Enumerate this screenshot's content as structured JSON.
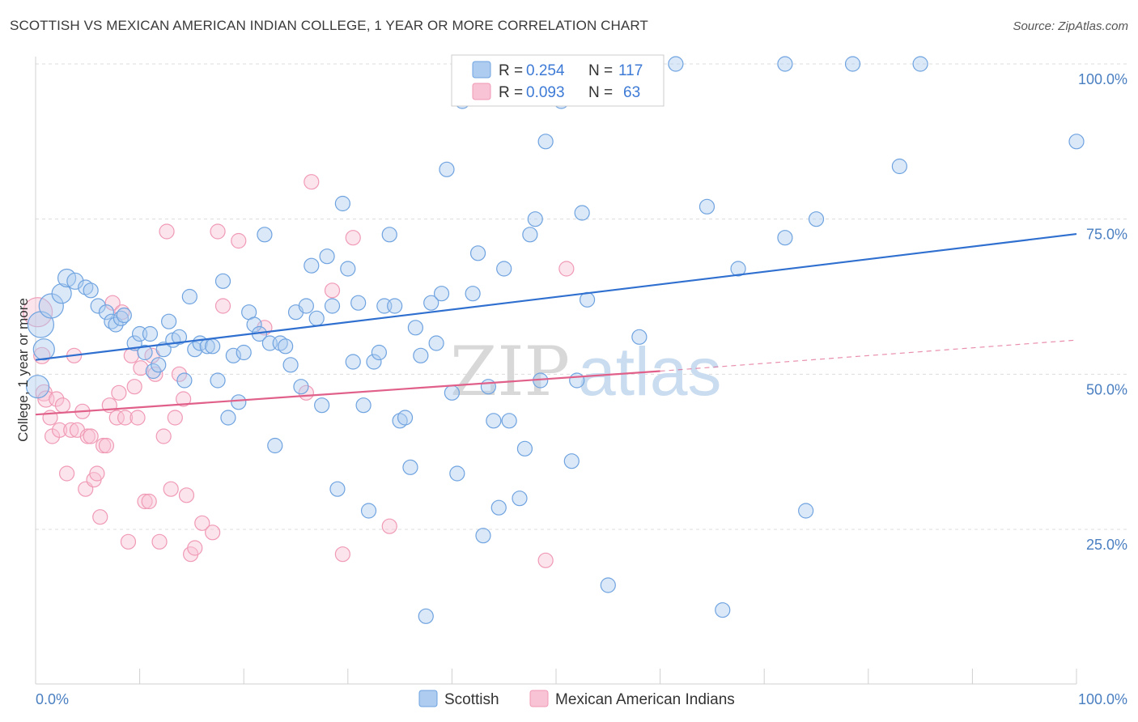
{
  "title": "SCOTTISH VS MEXICAN AMERICAN INDIAN COLLEGE, 1 YEAR OR MORE CORRELATION CHART",
  "source": "Source: ZipAtlas.com",
  "watermark": {
    "part1": "ZIP",
    "part2": "atlas"
  },
  "legend": {
    "items": [
      {
        "r_label": "R =",
        "r_value": "0.254",
        "n_label": "N =",
        "n_value": "117"
      },
      {
        "r_label": "R =",
        "r_value": "0.093",
        "n_label": "N =",
        "n_value": "63"
      }
    ]
  },
  "bottom_legend": [
    "Scottish",
    "Mexican American Indians"
  ],
  "colors": {
    "scottish": "#6fa3e0",
    "scottish_fill": "#aecbf0",
    "scottish_line": "#2f6fcf",
    "mexican": "#f09ab5",
    "mexican_fill": "#f8c3d4",
    "mexican_line": "#e0608a",
    "tick_text": "#4a7fc1"
  },
  "chart_data": {
    "type": "scatter",
    "ylabel": "College, 1 year or more",
    "xlim": [
      0,
      100
    ],
    "ylim": [
      0,
      100
    ],
    "x_tick_labels": [
      "0.0%",
      "100.0%"
    ],
    "y_ticks": [
      25,
      50,
      75,
      100
    ],
    "y_tick_labels": [
      "25.0%",
      "50.0%",
      "75.0%",
      "100.0%"
    ],
    "grid": "horizontal dashed",
    "legend_position": "top-center",
    "series": [
      {
        "name": "Scottish",
        "trend": {
          "x": [
            0,
            100
          ],
          "y": [
            52.3,
            72.6
          ]
        },
        "points": [
          [
            0.2,
            48,
            14
          ],
          [
            0.5,
            58,
            16
          ],
          [
            0.8,
            54,
            13
          ],
          [
            1.5,
            61,
            15
          ],
          [
            2.5,
            63,
            12
          ],
          [
            3,
            65.5,
            11
          ],
          [
            3.8,
            65,
            10
          ],
          [
            4.8,
            64,
            9
          ],
          [
            5.3,
            63.5,
            9
          ],
          [
            6,
            61,
            9
          ],
          [
            6.8,
            60,
            9
          ],
          [
            7.3,
            58.5,
            9
          ],
          [
            7.7,
            58,
            9
          ],
          [
            8.2,
            59,
            9
          ],
          [
            8.5,
            59.5,
            9
          ],
          [
            9.5,
            55,
            9
          ],
          [
            10,
            56.5,
            9
          ],
          [
            10.5,
            53.5,
            9
          ],
          [
            11,
            56.5,
            9
          ],
          [
            11.3,
            50.5,
            9
          ],
          [
            11.8,
            51.5,
            9
          ],
          [
            12.3,
            54,
            9
          ],
          [
            12.8,
            58.5,
            9
          ],
          [
            13.2,
            55.5,
            9
          ],
          [
            13.8,
            56,
            9
          ],
          [
            14.3,
            49,
            9
          ],
          [
            14.8,
            62.5,
            9
          ],
          [
            15.3,
            54,
            9
          ],
          [
            15.8,
            55,
            9
          ],
          [
            16.5,
            54.5,
            9
          ],
          [
            17,
            54.5,
            9
          ],
          [
            17.5,
            49,
            9
          ],
          [
            18,
            65,
            9
          ],
          [
            18.5,
            43,
            9
          ],
          [
            19,
            53,
            9
          ],
          [
            19.5,
            45.5,
            9
          ],
          [
            20,
            53.5,
            9
          ],
          [
            20.5,
            60,
            9
          ],
          [
            21,
            58,
            9
          ],
          [
            21.5,
            56.5,
            9
          ],
          [
            22,
            72.5,
            9
          ],
          [
            22.5,
            55,
            9
          ],
          [
            23,
            38.5,
            9
          ],
          [
            23.5,
            55,
            9
          ],
          [
            24,
            54.5,
            9
          ],
          [
            24.5,
            51.5,
            9
          ],
          [
            25,
            60,
            9
          ],
          [
            25.5,
            48,
            9
          ],
          [
            26,
            61,
            9
          ],
          [
            26.5,
            67.5,
            9
          ],
          [
            27,
            59,
            9
          ],
          [
            27.5,
            45,
            9
          ],
          [
            28,
            69,
            9
          ],
          [
            28.5,
            61,
            9
          ],
          [
            29,
            31.5,
            9
          ],
          [
            29.5,
            77.5,
            9
          ],
          [
            30,
            67,
            9
          ],
          [
            30.5,
            52,
            9
          ],
          [
            31,
            61.5,
            9
          ],
          [
            31.5,
            45,
            9
          ],
          [
            32,
            28,
            9
          ],
          [
            32.5,
            52,
            9
          ],
          [
            33,
            53.5,
            9
          ],
          [
            33.5,
            61,
            9
          ],
          [
            34,
            72.5,
            9
          ],
          [
            34.5,
            61,
            9
          ],
          [
            35,
            42.5,
            9
          ],
          [
            35.5,
            43,
            9
          ],
          [
            36,
            35,
            9
          ],
          [
            36.5,
            57.5,
            9
          ],
          [
            37,
            53,
            9
          ],
          [
            37.5,
            11,
            9
          ],
          [
            38,
            61.5,
            9
          ],
          [
            38.5,
            55,
            9
          ],
          [
            39,
            63,
            9
          ],
          [
            39.5,
            83,
            9
          ],
          [
            40,
            47,
            9
          ],
          [
            40.5,
            34,
            9
          ],
          [
            41,
            94,
            9
          ],
          [
            42,
            63,
            9
          ],
          [
            42.5,
            69.5,
            9
          ],
          [
            43,
            24,
            9
          ],
          [
            43.5,
            48,
            9
          ],
          [
            44,
            42.5,
            9
          ],
          [
            44.5,
            28.5,
            9
          ],
          [
            45,
            67,
            9
          ],
          [
            45.5,
            42.5,
            9
          ],
          [
            46.5,
            30,
            9
          ],
          [
            47,
            38,
            9
          ],
          [
            47.5,
            72.5,
            9
          ],
          [
            48,
            75,
            9
          ],
          [
            48.5,
            49,
            9
          ],
          [
            49,
            87.5,
            9
          ],
          [
            50.5,
            94,
            9
          ],
          [
            51.5,
            36,
            9
          ],
          [
            52,
            49,
            9
          ],
          [
            52.5,
            76,
            9
          ],
          [
            53,
            62,
            9
          ],
          [
            55,
            16,
            9
          ],
          [
            58,
            56,
            9
          ],
          [
            59,
            100,
            9
          ],
          [
            61.5,
            100,
            9
          ],
          [
            64.5,
            77,
            9
          ],
          [
            66,
            12,
            9
          ],
          [
            67.5,
            67,
            9
          ],
          [
            72,
            100,
            9
          ],
          [
            72,
            72,
            9
          ],
          [
            74,
            28,
            9
          ],
          [
            75,
            75,
            9
          ],
          [
            78.5,
            100,
            9
          ],
          [
            83,
            83.5,
            9
          ],
          [
            85,
            100,
            9
          ],
          [
            100,
            87.5,
            9
          ]
        ]
      },
      {
        "name": "Mexican American Indians",
        "trend": {
          "x": [
            0,
            60
          ],
          "y": [
            43.5,
            50.5
          ]
        },
        "trend_dashed": {
          "x": [
            60,
            100
          ],
          "y": [
            50.5,
            55.5
          ]
        },
        "points": [
          [
            0.2,
            60,
            18
          ],
          [
            0.6,
            53,
            10
          ],
          [
            0.8,
            47,
            10
          ],
          [
            1,
            46,
            10
          ],
          [
            1.4,
            43,
            9
          ],
          [
            1.6,
            40,
            9
          ],
          [
            2,
            46,
            9
          ],
          [
            2.3,
            41,
            9
          ],
          [
            2.6,
            45,
            9
          ],
          [
            3,
            34,
            9
          ],
          [
            3.4,
            41,
            9
          ],
          [
            3.7,
            53,
            9
          ],
          [
            4,
            41,
            9
          ],
          [
            4.5,
            44,
            9
          ],
          [
            4.8,
            31.5,
            9
          ],
          [
            5,
            40,
            9
          ],
          [
            5.3,
            40,
            9
          ],
          [
            5.6,
            33,
            9
          ],
          [
            5.9,
            34,
            9
          ],
          [
            6.2,
            27,
            9
          ],
          [
            6.5,
            38.5,
            9
          ],
          [
            6.8,
            38.5,
            9
          ],
          [
            7.1,
            45,
            9
          ],
          [
            7.4,
            61.5,
            9
          ],
          [
            7.8,
            43,
            9
          ],
          [
            8,
            47,
            9
          ],
          [
            8.3,
            60,
            9
          ],
          [
            8.6,
            43,
            9
          ],
          [
            8.9,
            23,
            9
          ],
          [
            9.2,
            53,
            9
          ],
          [
            9.5,
            48,
            9
          ],
          [
            9.8,
            43,
            9
          ],
          [
            10.1,
            51,
            9
          ],
          [
            10.5,
            29.5,
            9
          ],
          [
            10.9,
            29.5,
            9
          ],
          [
            11.2,
            53,
            9
          ],
          [
            11.5,
            50,
            9
          ],
          [
            11.9,
            23,
            9
          ],
          [
            12.3,
            40,
            9
          ],
          [
            12.6,
            73,
            9
          ],
          [
            13,
            31.5,
            9
          ],
          [
            13.4,
            43,
            9
          ],
          [
            13.8,
            50,
            9
          ],
          [
            14.2,
            46,
            9
          ],
          [
            14.5,
            30.5,
            9
          ],
          [
            14.9,
            21,
            9
          ],
          [
            15.3,
            22,
            9
          ],
          [
            16,
            26,
            9
          ],
          [
            17,
            24.5,
            9
          ],
          [
            17.5,
            73,
            9
          ],
          [
            18,
            61,
            9
          ],
          [
            19.5,
            71.5,
            9
          ],
          [
            22,
            57.5,
            9
          ],
          [
            26,
            47,
            9
          ],
          [
            26.5,
            81,
            9
          ],
          [
            28.5,
            63.5,
            9
          ],
          [
            29.5,
            21,
            9
          ],
          [
            30.5,
            72,
            9
          ],
          [
            34,
            25.5,
            9
          ],
          [
            49,
            20,
            9
          ],
          [
            51,
            67,
            9
          ]
        ]
      }
    ]
  }
}
